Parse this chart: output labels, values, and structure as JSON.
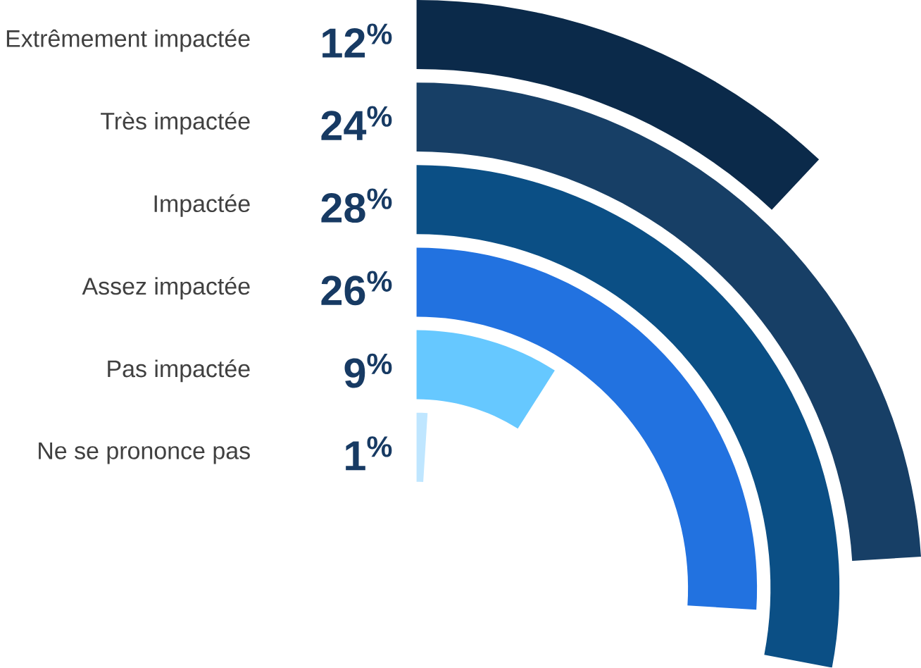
{
  "chart_data": {
    "type": "other",
    "categories": [
      "Extrêmement impactée",
      "Très impactée",
      "Impactée",
      "Assez impactée",
      "Pas impactée",
      "Ne se prononce pas"
    ],
    "values": [
      12,
      24,
      28,
      26,
      9,
      1
    ],
    "colors": [
      "#0b2a4a",
      "#173f66",
      "#0b4f85",
      "#2272e0",
      "#66c8ff",
      "#bfe6ff"
    ],
    "value_labels": [
      "12$^{%}$",
      "24$^{%}$",
      "28$^{%}$",
      "26$^{%}$",
      "9$^{%}$",
      "1$^{%}$"
    ]
  }
}
